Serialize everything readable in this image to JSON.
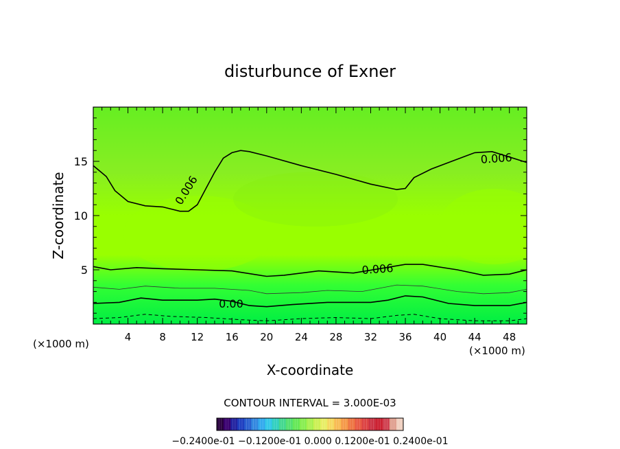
{
  "chart_data": {
    "type": "contour",
    "title": "disturbunce of Exner",
    "xlabel": "X-coordinate",
    "ylabel": "Z-coordinate",
    "x_unit_left": "(×1000 m)",
    "x_unit_right": "(×1000 m)",
    "xlim": [
      0,
      50
    ],
    "ylim": [
      0,
      20
    ],
    "x_ticks": [
      4,
      8,
      12,
      16,
      20,
      24,
      28,
      32,
      36,
      40,
      44,
      48
    ],
    "x_tick_labels": [
      "4",
      "8",
      "12",
      "16",
      "20",
      "24",
      "28",
      "32",
      "36",
      "40",
      "44",
      "48"
    ],
    "y_ticks": [
      5,
      10,
      15
    ],
    "y_tick_labels": [
      "5",
      "10",
      "15"
    ],
    "contour_interval_text": "CONTOUR INTERVAL = 3.000E-03",
    "colorbar_labels_text": "−0.2400e-01 −0.1200e-01 0.000 0.1200e-01 0.2400e-01",
    "colors": {
      "bottom": "#00ee44",
      "low": "#33ff33",
      "mid": "#99ff00",
      "upper": "#88ee22",
      "top": "#66ee22"
    },
    "contours": [
      {
        "label": "0.006",
        "label_at": [
          [
            10.8,
            12.3
          ],
          [
            46.5,
            15.2
          ]
        ],
        "style": "solid",
        "points": [
          [
            0,
            14.6
          ],
          [
            1.5,
            13.6
          ],
          [
            2.5,
            12.3
          ],
          [
            4,
            11.3
          ],
          [
            6,
            10.9
          ],
          [
            8,
            10.8
          ],
          [
            10,
            10.4
          ],
          [
            11,
            10.4
          ],
          [
            12,
            11
          ],
          [
            13,
            12.5
          ],
          [
            14,
            14
          ],
          [
            15,
            15.3
          ],
          [
            16,
            15.8
          ],
          [
            17,
            16
          ],
          [
            18,
            15.9
          ],
          [
            20,
            15.5
          ],
          [
            24,
            14.6
          ],
          [
            28,
            13.8
          ],
          [
            32,
            12.9
          ],
          [
            35,
            12.4
          ],
          [
            36,
            12.5
          ],
          [
            37,
            13.5
          ],
          [
            39,
            14.3
          ],
          [
            41,
            14.9
          ],
          [
            43,
            15.5
          ],
          [
            44,
            15.8
          ],
          [
            46,
            15.9
          ],
          [
            48,
            15.4
          ],
          [
            50,
            14.9
          ]
        ]
      },
      {
        "label": "0.006",
        "label_at": [
          [
            32.8,
            5
          ]
        ],
        "style": "solid",
        "points": [
          [
            0,
            5.3
          ],
          [
            2,
            5
          ],
          [
            5,
            5.2
          ],
          [
            8,
            5.1
          ],
          [
            12,
            5
          ],
          [
            16,
            4.9
          ],
          [
            20,
            4.4
          ],
          [
            22,
            4.5
          ],
          [
            26,
            4.9
          ],
          [
            30,
            4.7
          ],
          [
            33,
            5.1
          ],
          [
            36,
            5.5
          ],
          [
            38,
            5.5
          ],
          [
            42,
            5
          ],
          [
            45,
            4.5
          ],
          [
            48,
            4.6
          ],
          [
            50,
            5
          ]
        ]
      },
      {
        "label": "",
        "label_at": [],
        "style": "thin",
        "points": [
          [
            0,
            3.4
          ],
          [
            3,
            3.2
          ],
          [
            6,
            3.5
          ],
          [
            10,
            3.3
          ],
          [
            14,
            3.3
          ],
          [
            18,
            3.1
          ],
          [
            20,
            2.8
          ],
          [
            24,
            2.9
          ],
          [
            27,
            3.1
          ],
          [
            31,
            3
          ],
          [
            35,
            3.6
          ],
          [
            38,
            3.5
          ],
          [
            42,
            3
          ],
          [
            45,
            2.8
          ],
          [
            48,
            2.9
          ],
          [
            50,
            3.2
          ]
        ]
      },
      {
        "label": "0.00",
        "label_at": [
          [
            15.9,
            1.8
          ]
        ],
        "style": "solid",
        "points": [
          [
            0,
            1.9
          ],
          [
            3,
            2
          ],
          [
            5.5,
            2.4
          ],
          [
            8,
            2.2
          ],
          [
            12,
            2.2
          ],
          [
            14,
            2.3
          ],
          [
            16,
            2.1
          ],
          [
            18,
            1.7
          ],
          [
            20,
            1.6
          ],
          [
            23,
            1.8
          ],
          [
            27,
            2
          ],
          [
            32,
            2
          ],
          [
            34,
            2.2
          ],
          [
            36,
            2.6
          ],
          [
            38,
            2.5
          ],
          [
            41,
            1.9
          ],
          [
            44,
            1.7
          ],
          [
            48,
            1.7
          ],
          [
            50,
            2
          ]
        ]
      },
      {
        "label": "",
        "label_at": [],
        "style": "dashed",
        "points": [
          [
            0,
            0.5
          ],
          [
            3,
            0.6
          ],
          [
            6,
            0.9
          ],
          [
            9,
            0.7
          ],
          [
            13,
            0.6
          ],
          [
            17,
            0.4
          ],
          [
            20,
            0.3
          ],
          [
            24,
            0.5
          ],
          [
            28,
            0.6
          ],
          [
            32,
            0.5
          ],
          [
            35,
            0.8
          ],
          [
            37,
            0.9
          ],
          [
            40,
            0.5
          ],
          [
            44,
            0.3
          ],
          [
            48,
            0.3
          ],
          [
            50,
            0.5
          ]
        ]
      }
    ],
    "colorbar_segments": [
      "#2a0040",
      "#3a0070",
      "#2222a0",
      "#1f3fc0",
      "#2a60d0",
      "#3388e0",
      "#33aaee",
      "#33c8e8",
      "#33d0c0",
      "#44d890",
      "#55e070",
      "#66e858",
      "#88ee50",
      "#aaf050",
      "#ccf055",
      "#e8ee66",
      "#f5d860",
      "#f8bb55",
      "#f59a4a",
      "#ee7744",
      "#e85a44",
      "#dd4444",
      "#cc3344",
      "#cc2233",
      "#d04050",
      "#e0a090",
      "#f0d0c0"
    ]
  }
}
